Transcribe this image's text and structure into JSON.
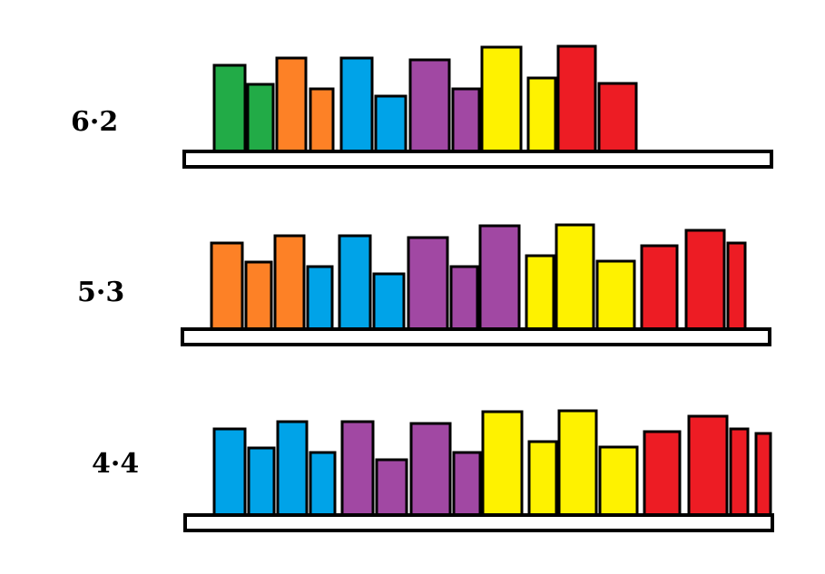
{
  "colors": {
    "green": "#22ab47",
    "orange": "#fd8126",
    "blue": "#00a3e8",
    "purple": "#a148a3",
    "yellow": "#fef200",
    "red": "#ed1c24",
    "outline": "#000000",
    "shelf_fill": "#ffffff"
  },
  "shelves": [
    {
      "label": "6·2",
      "books": [
        "green",
        "green",
        "orange",
        "orange",
        "blue",
        "blue",
        "purple",
        "purple",
        "yellow",
        "yellow",
        "red",
        "red"
      ]
    },
    {
      "label": "5·3",
      "books": [
        "orange",
        "orange",
        "orange",
        "blue",
        "blue",
        "blue",
        "purple",
        "purple",
        "purple",
        "yellow",
        "yellow",
        "yellow",
        "red",
        "red",
        "red"
      ]
    },
    {
      "label": "4·4",
      "books": [
        "blue",
        "blue",
        "blue",
        "blue",
        "purple",
        "purple",
        "purple",
        "purple",
        "yellow",
        "yellow",
        "yellow",
        "yellow",
        "red",
        "red",
        "red",
        "red"
      ]
    }
  ]
}
